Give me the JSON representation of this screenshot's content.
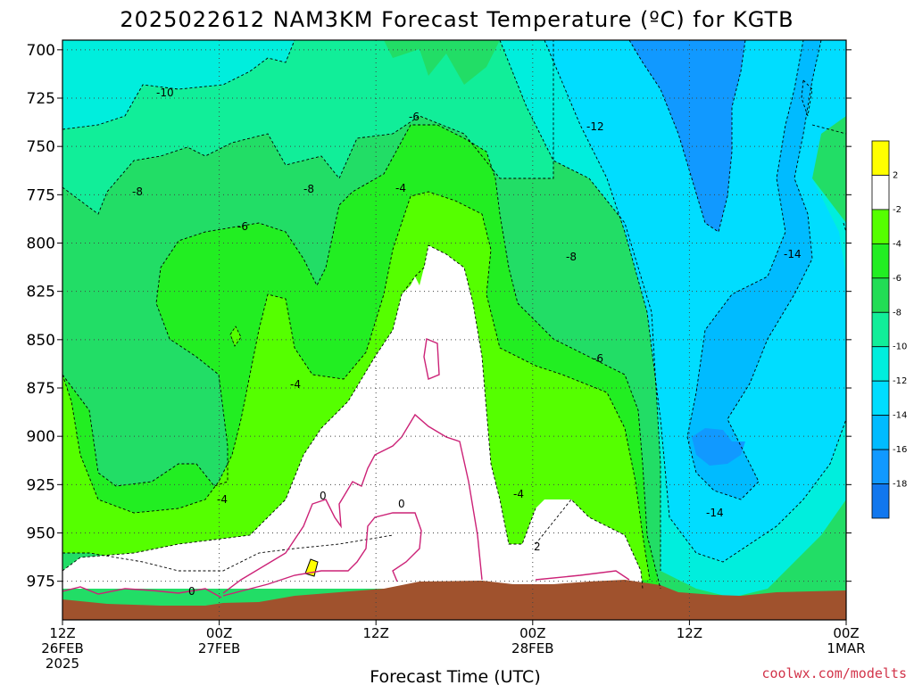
{
  "title": "2025022612 NAM3KM Forecast Temperature (ºC) for KGTB",
  "credit": "coolwx.com/modelts",
  "chart_data": {
    "type": "contour",
    "title": "2025022612 NAM3KM Forecast Temperature (ºC) for KGTB",
    "xlabel": "Forecast Time (UTC)",
    "ylabel": "",
    "x_ticks": [
      {
        "hour": 0,
        "lines": [
          "12Z",
          "26FEB",
          "2025"
        ]
      },
      {
        "hour": 12,
        "lines": [
          "00Z",
          "27FEB"
        ]
      },
      {
        "hour": 24,
        "lines": [
          "12Z"
        ]
      },
      {
        "hour": 36,
        "lines": [
          "00Z",
          "28FEB"
        ]
      },
      {
        "hour": 48,
        "lines": [
          "12Z"
        ]
      },
      {
        "hour": 60,
        "lines": [
          "00Z",
          "1MAR"
        ]
      }
    ],
    "xlim": [
      0,
      60
    ],
    "y_ticks": [
      700,
      725,
      750,
      775,
      800,
      825,
      850,
      875,
      900,
      925,
      950,
      975
    ],
    "ylim": [
      695,
      995
    ],
    "y_units": "hPa",
    "grid": true,
    "colorbar": {
      "position": "right",
      "labels": [
        "2",
        "-2",
        "-4",
        "-6",
        "-8",
        "-10",
        "-12",
        "-14",
        "-16",
        "-18"
      ],
      "bands": [
        {
          "range": "above 2",
          "color": "#ffff00"
        },
        {
          "range": "-2 to 2",
          "color": "#ffffff"
        },
        {
          "range": "-4 to -2",
          "color": "#55ff00"
        },
        {
          "range": "-6 to -4",
          "color": "#22ee22"
        },
        {
          "range": "-8 to -6",
          "color": "#22dd55"
        },
        {
          "range": "-10 to -8",
          "color": "#11ee99"
        },
        {
          "range": "-12 to -10",
          "color": "#00eedd"
        },
        {
          "range": "-14 to -12",
          "color": "#00ddff"
        },
        {
          "range": "-16 to -14",
          "color": "#00bbff"
        },
        {
          "range": "-18 to -16",
          "color": "#1199ff"
        },
        {
          "range": "below -18",
          "color": "#1177ee"
        }
      ]
    },
    "contour_labels": [
      "-10",
      "-6",
      "-12",
      "-8",
      "-8",
      "-4",
      "-6",
      "-8",
      "-14",
      "-6",
      "-4",
      "-4",
      "0",
      "0",
      "-4",
      "2",
      "-14",
      "0"
    ],
    "colors": {
      "terrain": "#a0522d",
      "freezing_line": "#cc2277",
      "warm_spot": "#ffff00"
    }
  }
}
